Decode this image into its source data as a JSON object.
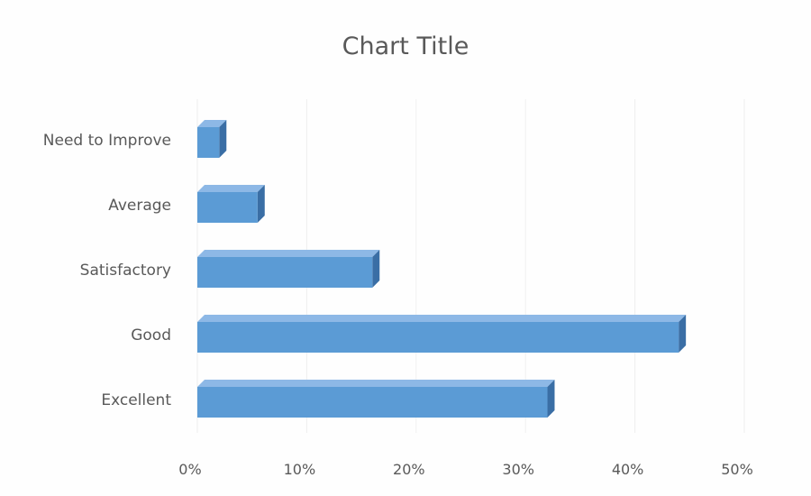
{
  "chart_data": {
    "type": "bar",
    "orientation": "horizontal",
    "title": "Chart Title",
    "categories": [
      "Excellent",
      "Good",
      "Satisfactory",
      "Average",
      "Need to Improve"
    ],
    "series": [
      {
        "values": [
          0.32,
          0.44,
          0.16,
          0.055,
          0.02
        ]
      }
    ],
    "xlim": [
      0,
      0.5
    ],
    "xticks": [
      "0%",
      "10%",
      "20%",
      "30%",
      "40%",
      "50%"
    ],
    "grid": true,
    "legend": "none",
    "colors": {
      "bar_front": "#5b9bd5",
      "bar_top": "#8db8e6",
      "bar_side": "#3a6ea5",
      "text": "#595959"
    }
  }
}
